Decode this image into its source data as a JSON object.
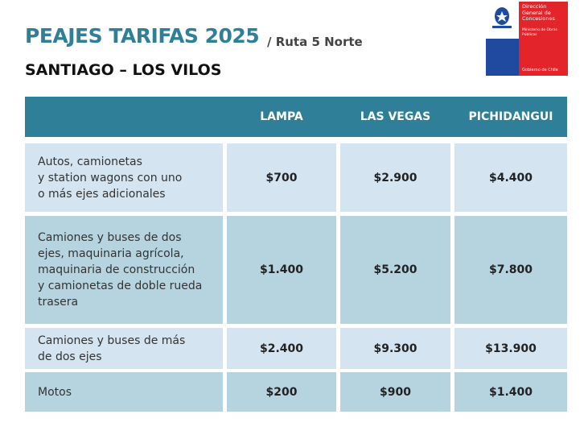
{
  "header": {
    "title": "PEAJES TARIFAS 2025",
    "route": "/ Ruta 5 Norte",
    "subtitle": "SANTIAGO – LOS VILOS"
  },
  "logo": {
    "agency": "Dirección General de Concesiones",
    "ministry": "Ministerio de Obras Públicas",
    "government": "Gobierno de Chile"
  },
  "table": {
    "columns": [
      "LAMPA",
      "LAS VEGAS",
      "PICHIDANGUI"
    ],
    "rows": [
      [
        "Autos, camionetas\ny station wagons con uno\no más ejes adicionales",
        "$700",
        "$2.900",
        "$4.400"
      ],
      [
        "Camiones y buses de dos\nejes, maquinaria agrícola,\nmaquinaria de construcción\ny camionetas de doble rueda\ntrasera",
        "$1.400",
        "$5.200",
        "$7.800"
      ],
      [
        "Camiones y buses de más\nde dos ejes",
        "$2.400",
        "$9.300",
        "$13.900"
      ],
      [
        "Motos",
        "$200",
        "$900",
        "$1.400"
      ]
    ]
  }
}
